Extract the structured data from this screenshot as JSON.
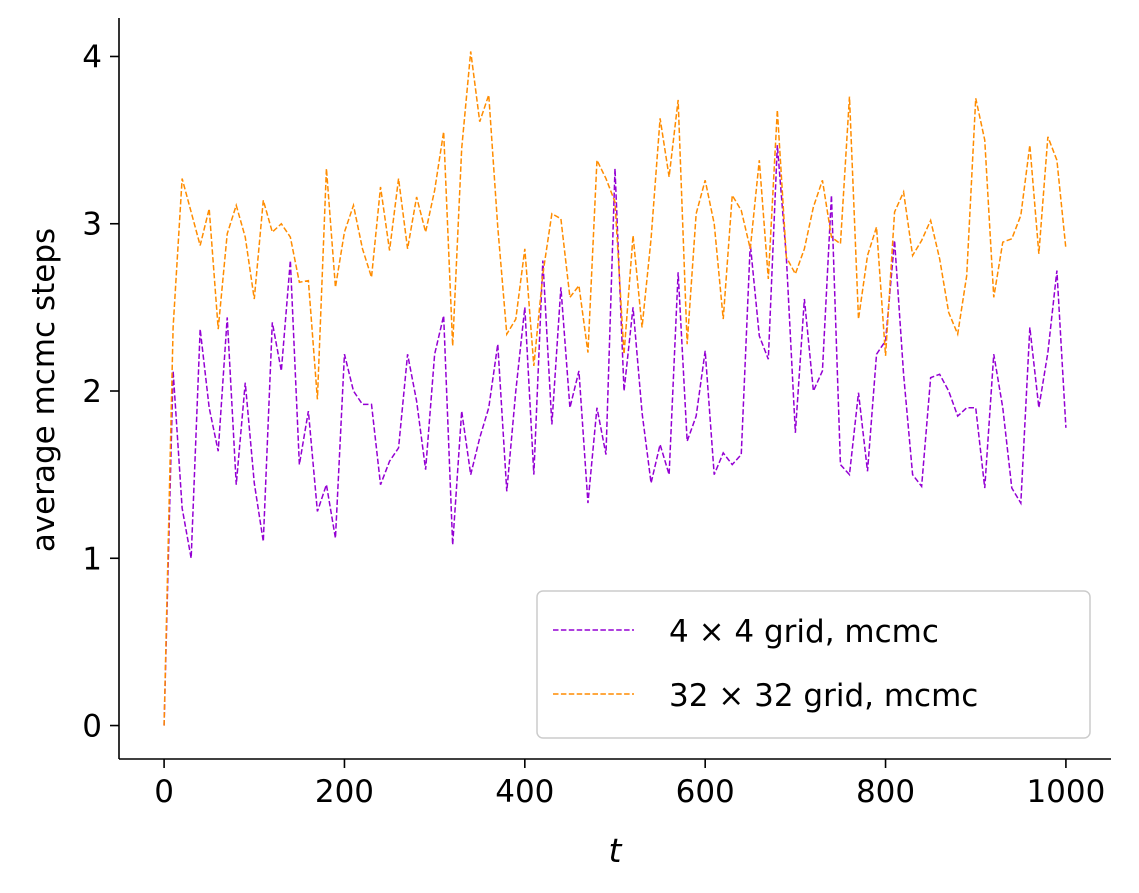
{
  "chart_data": {
    "type": "line",
    "title": "",
    "xlabel": "t",
    "ylabel": "average mcmc steps",
    "xlim": [
      -50,
      1050
    ],
    "ylim": [
      -0.2,
      4.23
    ],
    "xticks": [
      0,
      200,
      400,
      600,
      800,
      1000
    ],
    "yticks": [
      0,
      1,
      2,
      3,
      4
    ],
    "xtick_labels": [
      "0",
      "200",
      "400",
      "600",
      "800",
      "1000"
    ],
    "ytick_labels": [
      "0",
      "1",
      "2",
      "3",
      "4"
    ],
    "grid": false,
    "legend_position": "lower-right",
    "x": [
      0,
      10,
      20,
      30,
      40,
      50,
      60,
      70,
      80,
      90,
      100,
      110,
      120,
      130,
      140,
      150,
      160,
      170,
      180,
      190,
      200,
      210,
      220,
      230,
      240,
      250,
      260,
      270,
      280,
      290,
      300,
      310,
      320,
      330,
      340,
      350,
      360,
      370,
      380,
      390,
      400,
      410,
      420,
      430,
      440,
      450,
      460,
      470,
      480,
      490,
      500,
      510,
      520,
      530,
      540,
      550,
      560,
      570,
      580,
      590,
      600,
      610,
      620,
      630,
      640,
      650,
      660,
      670,
      680,
      690,
      700,
      710,
      720,
      730,
      740,
      750,
      760,
      770,
      780,
      790,
      800,
      810,
      820,
      830,
      840,
      850,
      860,
      870,
      880,
      890,
      900,
      910,
      920,
      930,
      940,
      950,
      960,
      970,
      980,
      990,
      1000
    ],
    "series": [
      {
        "name": "4 × 4 grid, mcmc",
        "color": "#9400D3",
        "style": "dashed",
        "values": [
          0,
          2.12,
          1.3,
          1.0,
          2.37,
          1.9,
          1.64,
          2.44,
          1.44,
          2.05,
          1.45,
          1.1,
          2.41,
          2.12,
          2.78,
          1.56,
          1.88,
          1.28,
          1.44,
          1.12,
          2.22,
          2.0,
          1.92,
          1.92,
          1.44,
          1.58,
          1.66,
          2.22,
          1.94,
          1.53,
          2.22,
          2.45,
          1.08,
          1.88,
          1.5,
          1.72,
          1.9,
          2.28,
          1.4,
          2.0,
          2.5,
          1.5,
          2.78,
          1.8,
          2.62,
          1.9,
          2.12,
          1.33,
          1.9,
          1.62,
          3.33,
          2.0,
          2.5,
          1.87,
          1.45,
          1.68,
          1.5,
          2.71,
          1.7,
          1.85,
          2.24,
          1.5,
          1.63,
          1.56,
          1.62,
          2.88,
          2.33,
          2.19,
          3.47,
          2.8,
          1.75,
          2.55,
          2.0,
          2.12,
          3.17,
          1.56,
          1.5,
          1.99,
          1.52,
          2.22,
          2.3,
          2.9,
          2.1,
          1.5,
          1.43,
          2.08,
          2.1,
          2.0,
          1.85,
          1.9,
          1.9,
          1.42,
          2.22,
          1.9,
          1.42,
          1.33,
          2.38,
          1.9,
          2.23,
          2.72,
          1.78
        ]
      },
      {
        "name": "32 × 32 grid, mcmc",
        "color": "#FF8C00",
        "style": "dashed",
        "values": [
          0,
          2.38,
          3.27,
          3.07,
          2.87,
          3.09,
          2.37,
          2.94,
          3.11,
          2.92,
          2.55,
          3.14,
          2.95,
          3.0,
          2.92,
          2.65,
          2.66,
          1.95,
          3.33,
          2.62,
          2.95,
          3.11,
          2.85,
          2.68,
          3.22,
          2.84,
          3.27,
          2.85,
          3.16,
          2.95,
          3.2,
          3.55,
          2.27,
          3.45,
          4.03,
          3.61,
          3.77,
          2.98,
          2.34,
          2.43,
          2.85,
          2.15,
          2.7,
          3.06,
          3.03,
          2.56,
          2.63,
          2.23,
          3.38,
          3.27,
          3.13,
          2.22,
          2.93,
          2.38,
          2.91,
          3.63,
          3.28,
          3.74,
          2.28,
          3.06,
          3.26,
          3.0,
          2.43,
          3.17,
          3.08,
          2.85,
          3.38,
          2.67,
          3.68,
          2.8,
          2.7,
          2.85,
          3.1,
          3.26,
          2.92,
          2.88,
          3.76,
          2.43,
          2.81,
          2.98,
          2.21,
          3.07,
          3.19,
          2.81,
          2.9,
          3.02,
          2.79,
          2.47,
          2.34,
          2.69,
          3.75,
          3.5,
          2.56,
          2.89,
          2.91,
          3.05,
          3.47,
          2.82,
          3.52,
          3.38,
          2.85
        ]
      }
    ]
  }
}
